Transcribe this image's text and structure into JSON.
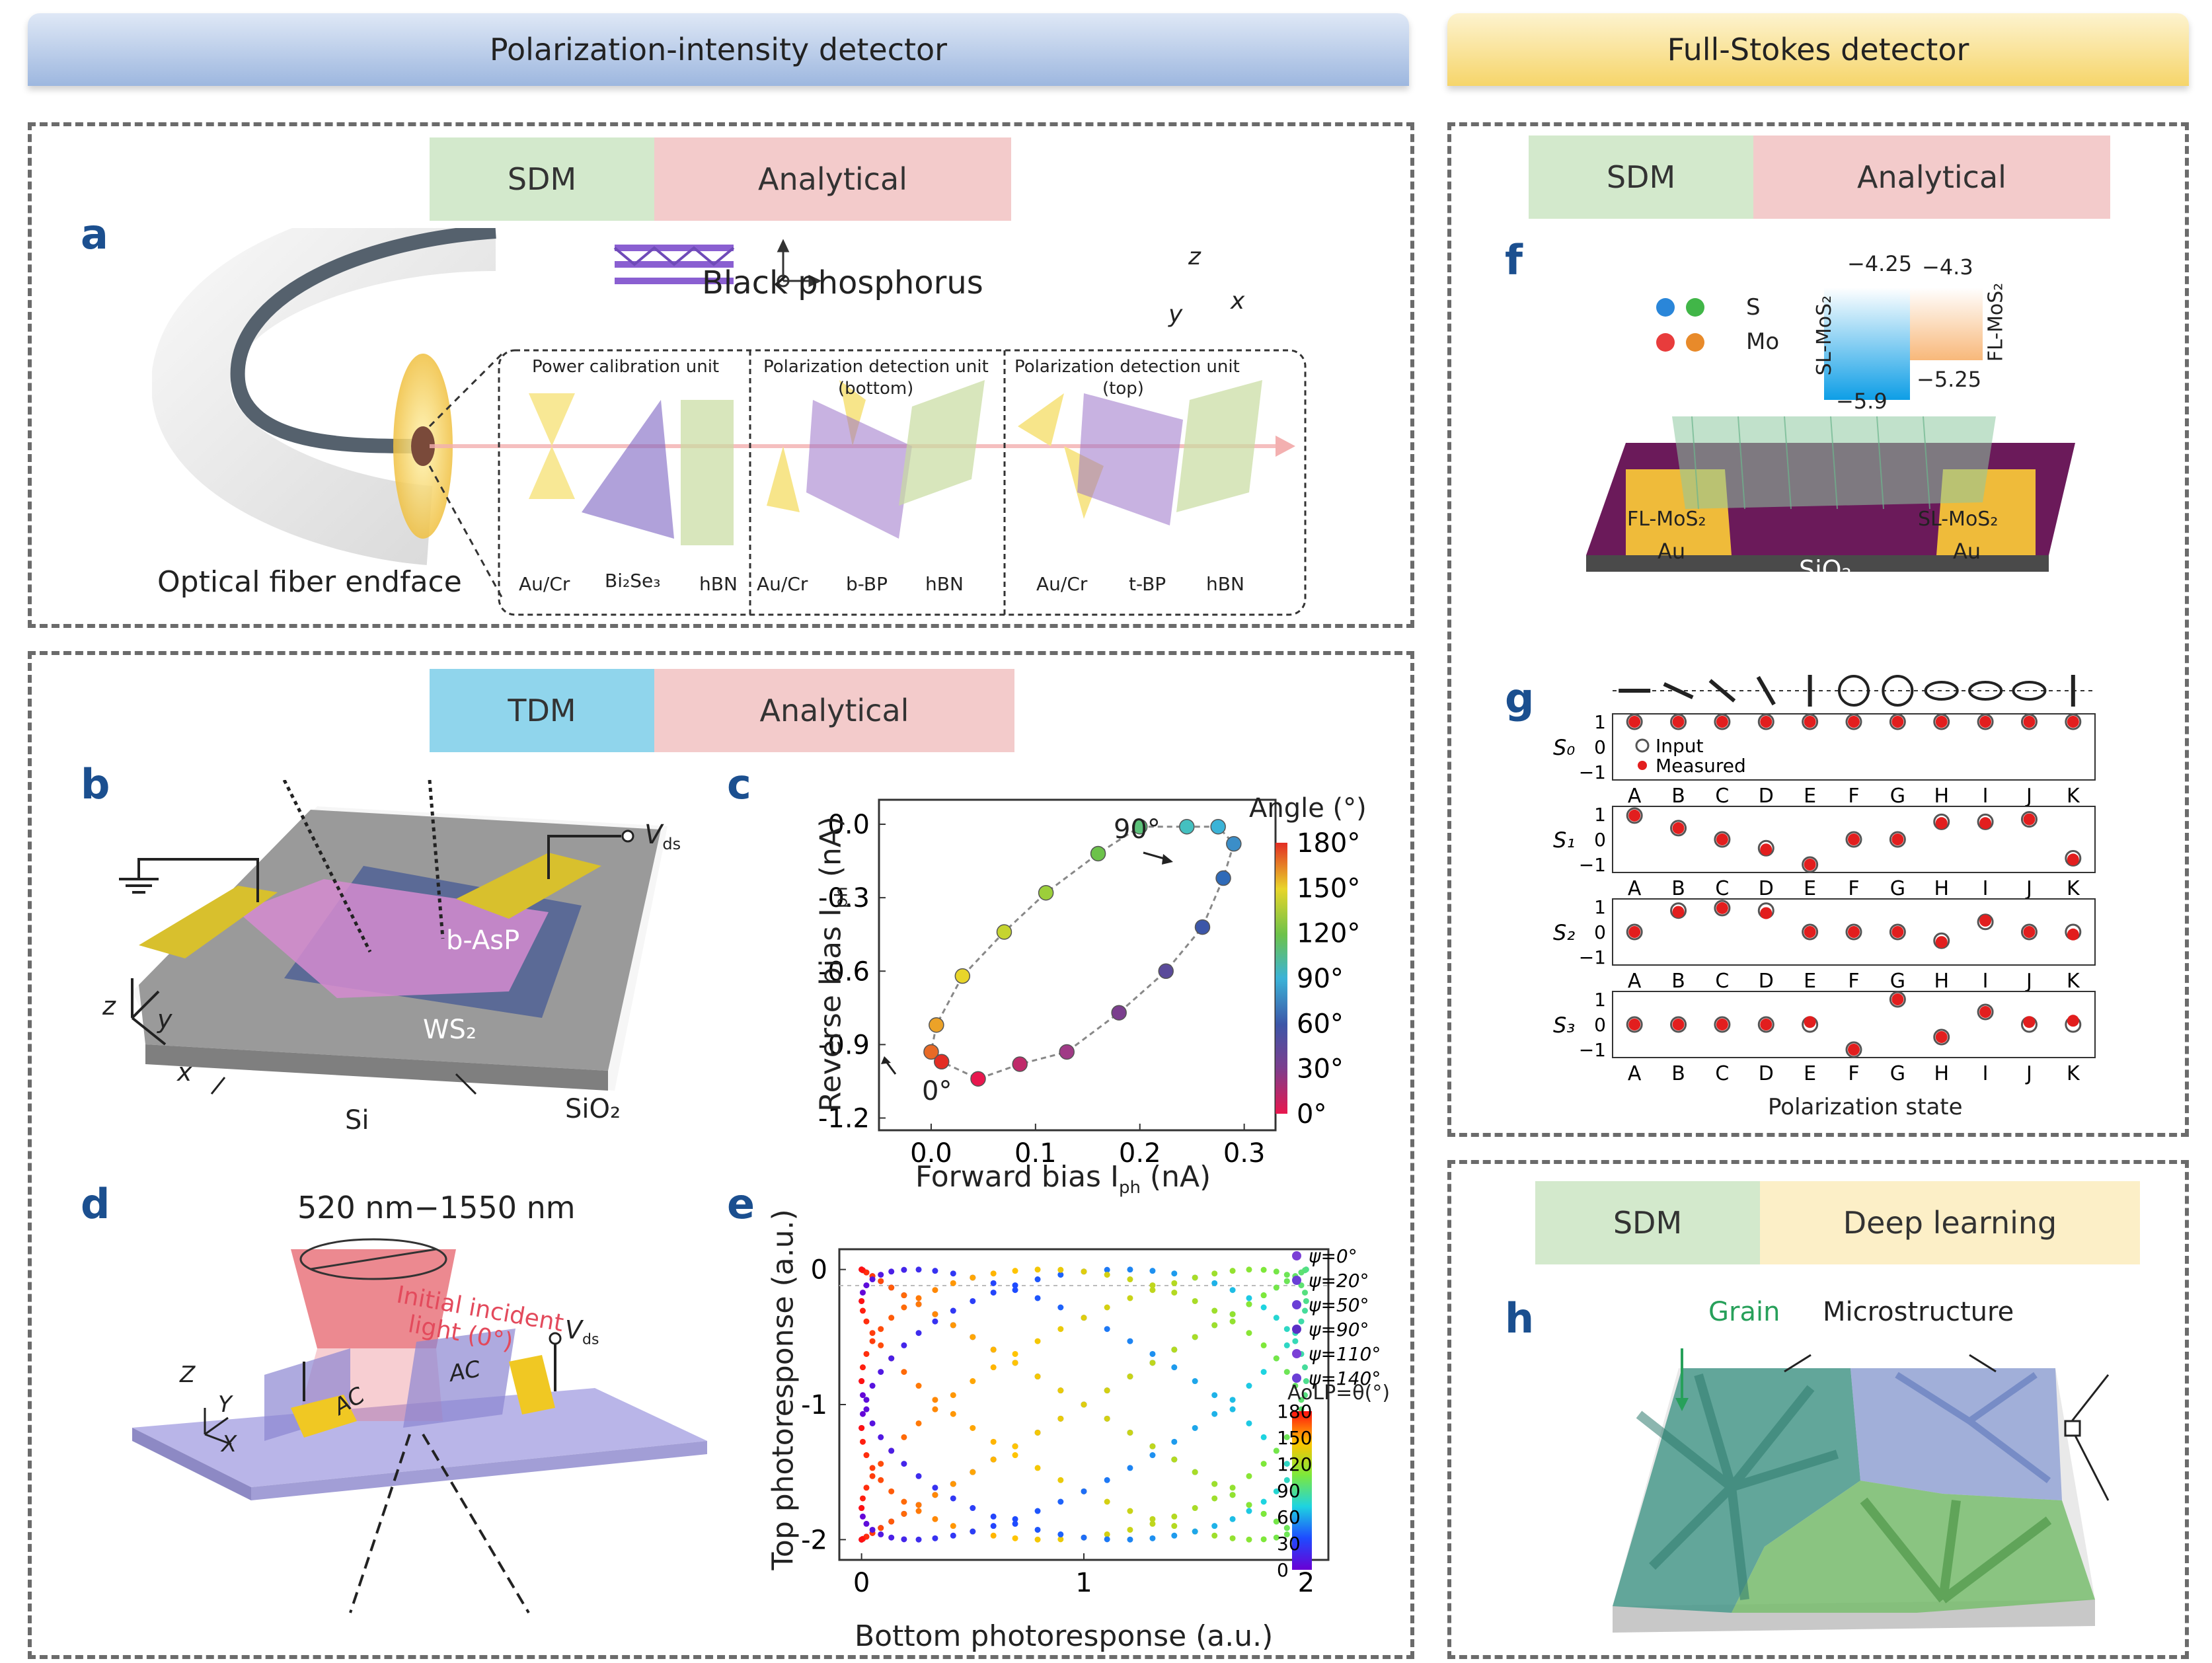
{
  "headers": {
    "left": "Polarization-intensity detector",
    "right": "Full-Stokes detector"
  },
  "tags": {
    "a": [
      "SDM",
      "Analytical"
    ],
    "b": [
      "TDM",
      "Analytical"
    ],
    "f": [
      "SDM",
      "Analytical"
    ],
    "h": [
      "SDM",
      "Deep learning"
    ]
  },
  "panel_labels": {
    "a": "a",
    "b": "b",
    "c": "c",
    "d": "d",
    "e": "e",
    "f": "f",
    "g": "g",
    "h": "h"
  },
  "panel_a": {
    "title": "Black phosphorus",
    "fiber": "Optical fiber endface",
    "axes": {
      "z": "z",
      "y": "y",
      "x": "x"
    },
    "units": [
      {
        "title": "Power calibration unit",
        "subtitle": "",
        "labels": [
          "Au/Cr",
          "Bi₂Se₃",
          "hBN"
        ]
      },
      {
        "title": "Polarization detection unit",
        "subtitle": "(bottom)",
        "labels": [
          "Au/Cr",
          "b-BP",
          "hBN"
        ]
      },
      {
        "title": "Polarization detection unit",
        "subtitle": "(top)",
        "labels": [
          "Au/Cr",
          "t-BP",
          "hBN"
        ]
      }
    ]
  },
  "panel_b": {
    "vds": "V",
    "vds_sub": "ds",
    "basp": "b-AsP",
    "ws2": "WS₂",
    "si": "Si",
    "sio2": "SiO₂",
    "axes": {
      "z": "z",
      "y": "y",
      "x": "x"
    }
  },
  "panel_c": {
    "xlabel": "Forward bias I",
    "xlabel_sub": "ph",
    "xlabel_unit": " (nA)",
    "ylabel": "Reverse bias I",
    "ylabel_sub": "ph",
    "ylabel_unit": " (nA)",
    "xticks": [
      "0.0",
      "0.1",
      "0.2",
      "0.3"
    ],
    "yticks": [
      "0.0",
      "-0.3",
      "-0.6",
      "-0.9",
      "-1.2"
    ],
    "ann_90": "90°",
    "ann_0": "0°",
    "colorbar_title": "Angle (°)",
    "colorbar_ticks": [
      "180°",
      "150°",
      "120°",
      "90°",
      "60°",
      "30°",
      "0°"
    ]
  },
  "panel_d": {
    "wavelength": "520 nm−1550 nm",
    "incident": "Initial incident",
    "incident2": "light (0°)",
    "vds": "V",
    "vds_sub": "ds",
    "ac": "AC",
    "axes": {
      "z": "Z",
      "y": "Y",
      "x": "X"
    }
  },
  "panel_e": {
    "xlabel": "Bottom photoresponse (a.u.)",
    "ylabel": "Top photoresponse (a.u.)",
    "xticks": [
      "0",
      "1",
      "2"
    ],
    "yticks": [
      "0",
      "-1",
      "-2"
    ],
    "legend": [
      "ψ=0°",
      "ψ=20°",
      "ψ=50°",
      "ψ=90°",
      "ψ=110°",
      "ψ=140°"
    ],
    "colorbar_title": "AoLP=θ(°)",
    "colorbar_ticks": [
      "180",
      "150",
      "120",
      "90",
      "60",
      "30",
      "0"
    ]
  },
  "panel_f": {
    "s": "S",
    "mo": "Mo",
    "sl": "SL-MoS₂",
    "fl": "FL-MoS₂",
    "scale_sl": [
      "−4.25",
      "−5.9"
    ],
    "scale_fl": [
      "−4.3",
      "−5.25"
    ],
    "au": "Au",
    "sio2": "SiO₂",
    "si": "Si",
    "fl_label": "FL-MoS₂",
    "sl_label": "SL-MoS₂"
  },
  "panel_g": {
    "xlabel": "Polarization state",
    "legend": [
      "Input",
      "Measured"
    ],
    "rows": [
      "S₀",
      "S₁",
      "S₂",
      "S₃"
    ],
    "yticks": [
      "1",
      "0",
      "−1"
    ]
  },
  "panel_h": {
    "grain": "Grain",
    "micro": "Microstructure"
  },
  "chart_data": [
    {
      "type": "scatter",
      "xlabel": "Forward bias Iph (nA)",
      "ylabel": "Reverse bias Iph (nA)",
      "xlim": [
        -0.05,
        0.33
      ],
      "ylim": [
        -1.25,
        0.1
      ],
      "points": [
        {
          "x": 0.045,
          "y": -1.04,
          "angle": 0
        },
        {
          "x": 0.085,
          "y": -0.98,
          "angle": 10
        },
        {
          "x": 0.13,
          "y": -0.93,
          "angle": 20
        },
        {
          "x": 0.18,
          "y": -0.77,
          "angle": 30
        },
        {
          "x": 0.225,
          "y": -0.6,
          "angle": 40
        },
        {
          "x": 0.26,
          "y": -0.42,
          "angle": 50
        },
        {
          "x": 0.28,
          "y": -0.22,
          "angle": 60
        },
        {
          "x": 0.29,
          "y": -0.08,
          "angle": 70
        },
        {
          "x": 0.275,
          "y": -0.01,
          "angle": 80
        },
        {
          "x": 0.245,
          "y": -0.01,
          "angle": 90
        },
        {
          "x": 0.2,
          "y": -0.01,
          "angle": 100
        },
        {
          "x": 0.16,
          "y": -0.12,
          "angle": 110
        },
        {
          "x": 0.11,
          "y": -0.28,
          "angle": 120
        },
        {
          "x": 0.07,
          "y": -0.44,
          "angle": 130
        },
        {
          "x": 0.03,
          "y": -0.62,
          "angle": 140
        },
        {
          "x": 0.005,
          "y": -0.82,
          "angle": 150
        },
        {
          "x": 0.0,
          "y": -0.93,
          "angle": 160
        },
        {
          "x": 0.01,
          "y": -0.97,
          "angle": 170
        }
      ]
    },
    {
      "type": "scatter",
      "xlabel": "Bottom photoresponse (a.u.)",
      "ylabel": "Top photoresponse (a.u.)",
      "xlim": [
        -0.1,
        2.1
      ],
      "ylim": [
        -2.15,
        0.15
      ],
      "series": [
        {
          "name": "ψ=0°",
          "psi": 0
        },
        {
          "name": "ψ=20°",
          "psi": 20
        },
        {
          "name": "ψ=50°",
          "psi": 50
        },
        {
          "name": "ψ=90°",
          "psi": 90
        },
        {
          "name": "ψ=110°",
          "psi": 110
        },
        {
          "name": "ψ=140°",
          "psi": 140
        }
      ]
    },
    {
      "type": "scatter",
      "xlabel": "Polarization state",
      "categories": [
        "A",
        "B",
        "C",
        "D",
        "E",
        "F",
        "G",
        "H",
        "I",
        "J",
        "K"
      ],
      "series": [
        {
          "name": "S0",
          "input": [
            1,
            1,
            1,
            1,
            1,
            1,
            1,
            1,
            1,
            1,
            1
          ],
          "measured": [
            1,
            1,
            1,
            1,
            1,
            1,
            1,
            1,
            1,
            1,
            1
          ]
        },
        {
          "name": "S1",
          "input": [
            0.95,
            0.45,
            0,
            -0.35,
            -1,
            0,
            0,
            0.7,
            0.7,
            0.8,
            -0.75
          ],
          "measured": [
            0.95,
            0.45,
            0,
            -0.4,
            -1,
            0,
            0,
            0.65,
            0.65,
            0.8,
            -0.8
          ]
        },
        {
          "name": "S2",
          "input": [
            0,
            0.85,
            0.95,
            0.85,
            0,
            0,
            0,
            -0.35,
            0.4,
            0,
            0
          ],
          "measured": [
            0,
            0.8,
            0.95,
            0.75,
            0,
            0,
            0,
            -0.4,
            0.45,
            0,
            -0.1
          ]
        },
        {
          "name": "S3",
          "input": [
            0,
            0,
            0,
            0,
            0,
            -1,
            1,
            -0.5,
            0.5,
            0,
            0
          ],
          "measured": [
            0,
            0,
            0,
            0,
            0.1,
            -1,
            1,
            -0.5,
            0.5,
            0.1,
            0.15
          ]
        }
      ]
    }
  ]
}
